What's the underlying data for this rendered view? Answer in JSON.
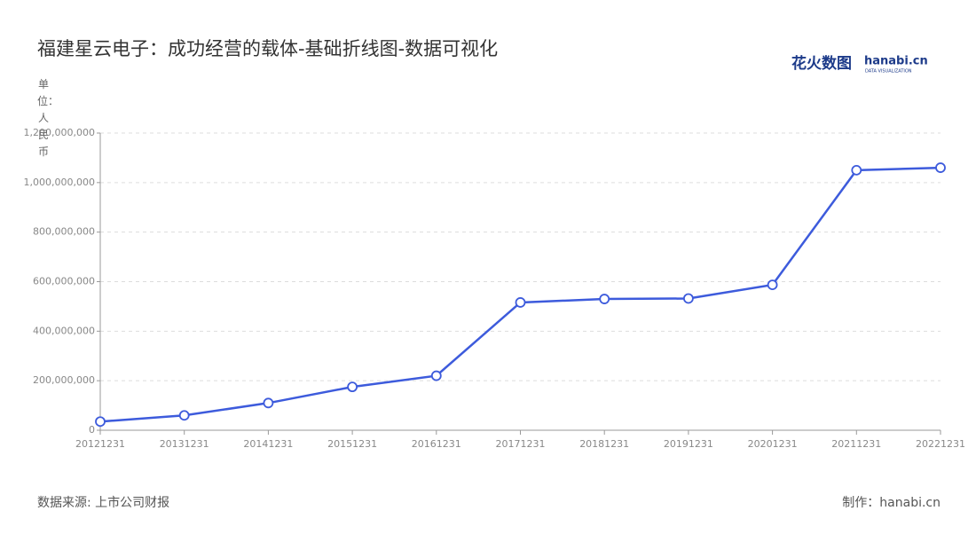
{
  "chart_data": {
    "type": "line",
    "title": "福建星云电子：成功经营的载体-基础折线图-数据可视化",
    "y_label": "单位：人民币",
    "logo": "花火数图",
    "logo_site": "hanabi.cn",
    "logo_sub": "DATA VISUALIZATION",
    "source": "数据来源: 上市公司财报",
    "credit": "制作：hanabi.cn",
    "categories": [
      "20121231",
      "20131231",
      "20141231",
      "20151231",
      "20161231",
      "20171231",
      "20181231",
      "20191231",
      "20201231",
      "20211231",
      "20221231"
    ],
    "series": [
      {
        "color": "#3d5bdc",
        "values": [
          35000000,
          60000000,
          110000000,
          175000000,
          220000000,
          516000000,
          530000000,
          532000000,
          587000000,
          1050000000,
          1060000000
        ]
      }
    ],
    "ylim": [
      0,
      1200000000
    ],
    "yticks": [
      0,
      {
        "value": 200000000,
        "label": "200,000,000"
      },
      {
        "value": 400000000,
        "label": "400,000,000"
      },
      {
        "value": 600000000,
        "label": "600,000,000"
      },
      {
        "value": 800000000,
        "label": "800,000,000"
      },
      {
        "value": 1000000000,
        "label": "1,000,000,000"
      },
      {
        "value": 1200000000,
        "label": "1,200,000,000"
      }
    ],
    "grid": true
  }
}
